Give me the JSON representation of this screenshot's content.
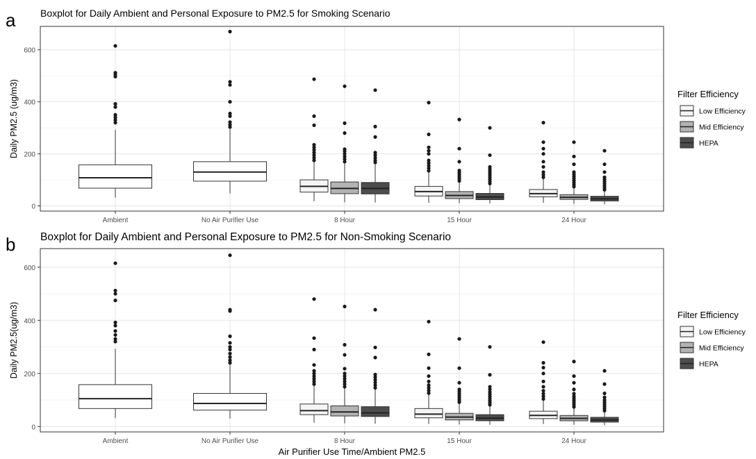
{
  "figure": {
    "legend_title": "Filter Efficiency",
    "legend_items": [
      {
        "label": "Low Efficiency",
        "color": "#f5f5f5"
      },
      {
        "label": "Mid Efficiency",
        "color": "#b3b3b3"
      },
      {
        "label": "HEPA",
        "color": "#4d4d4d"
      }
    ]
  },
  "chart_data": [
    {
      "type": "boxplot",
      "panel_label": "a",
      "title": "Boxplot for Daily Ambient and Personal Exposure to PM2.5 for Smoking Scenario",
      "xlabel": "",
      "ylabel": "Daily PM2.5 (ug/m3)",
      "ylim": [
        -20,
        690
      ],
      "yticks": [
        0,
        200,
        400,
        600
      ],
      "grid": true,
      "legend_position": "right",
      "categories": [
        "Ambient",
        "No Air Purifier Use",
        "8 Hour",
        "15 Hour",
        "24 Hour"
      ],
      "boxes": [
        {
          "category": "Ambient",
          "fill": "#ffffff",
          "whislo": 32,
          "q1": 68,
          "med": 108,
          "q3": 158,
          "whishi": 293,
          "fliers": [
            320,
            330,
            340,
            350,
            380,
            392,
            497,
            505,
            512,
            615
          ]
        },
        {
          "category": "No Air Purifier Use",
          "fill": "#ffffff",
          "whislo": 48,
          "q1": 95,
          "med": 130,
          "q3": 170,
          "whishi": 295,
          "fliers": [
            303,
            312,
            322,
            345,
            355,
            400,
            465,
            477,
            670
          ]
        },
        {
          "category": "8 Hour",
          "series": "Low Efficiency",
          "fill": "#f5f5f5",
          "whislo": 18,
          "q1": 53,
          "med": 75,
          "q3": 100,
          "whishi": 170,
          "fliers": [
            175,
            185,
            195,
            205,
            215,
            225,
            235,
            310,
            345,
            487
          ]
        },
        {
          "category": "8 Hour",
          "series": "Mid Efficiency",
          "fill": "#b3b3b3",
          "whislo": 14,
          "q1": 47,
          "med": 67,
          "q3": 92,
          "whishi": 165,
          "fliers": [
            170,
            180,
            190,
            200,
            210,
            218,
            280,
            318,
            460
          ]
        },
        {
          "category": "8 Hour",
          "series": "HEPA",
          "fill": "#4d4d4d",
          "whislo": 13,
          "q1": 46,
          "med": 67,
          "q3": 90,
          "whishi": 160,
          "fliers": [
            167,
            175,
            185,
            195,
            205,
            265,
            305,
            445
          ]
        },
        {
          "category": "15 Hour",
          "series": "Low Efficiency",
          "fill": "#f5f5f5",
          "whislo": 12,
          "q1": 38,
          "med": 55,
          "q3": 75,
          "whishi": 130,
          "fliers": [
            135,
            145,
            155,
            165,
            175,
            200,
            212,
            225,
            275,
            397
          ]
        },
        {
          "category": "15 Hour",
          "series": "Mid Efficiency",
          "fill": "#b3b3b3",
          "whislo": 10,
          "q1": 28,
          "med": 40,
          "q3": 55,
          "whishi": 92,
          "fliers": [
            96,
            104,
            112,
            120,
            128,
            136,
            170,
            220,
            332
          ]
        },
        {
          "category": "15 Hour",
          "series": "HEPA",
          "fill": "#4d4d4d",
          "whislo": 9,
          "q1": 24,
          "med": 34,
          "q3": 48,
          "whishi": 82,
          "fliers": [
            86,
            94,
            102,
            110,
            118,
            126,
            134,
            142,
            150,
            195,
            300
          ]
        },
        {
          "category": "24 Hour",
          "series": "Low Efficiency",
          "fill": "#f5f5f5",
          "whislo": 12,
          "q1": 35,
          "med": 47,
          "q3": 63,
          "whishi": 105,
          "fliers": [
            110,
            120,
            130,
            150,
            170,
            200,
            220,
            245,
            320
          ]
        },
        {
          "category": "24 Hour",
          "series": "Mid Efficiency",
          "fill": "#b3b3b3",
          "whislo": 8,
          "q1": 25,
          "med": 33,
          "q3": 43,
          "whishi": 70,
          "fliers": [
            74,
            82,
            90,
            98,
            106,
            114,
            122,
            130,
            160,
            190,
            245
          ]
        },
        {
          "category": "24 Hour",
          "series": "HEPA",
          "fill": "#4d4d4d",
          "whislo": 6,
          "q1": 19,
          "med": 27,
          "q3": 37,
          "whishi": 58,
          "fliers": [
            62,
            70,
            78,
            86,
            94,
            102,
            110,
            130,
            160,
            212
          ]
        }
      ]
    },
    {
      "type": "boxplot",
      "panel_label": "b",
      "title": "Boxplot for Daily Ambient and Personal Exposure to PM2.5 for Non-Smoking Scenario",
      "xlabel": "Air Purifier Use Time/Ambient PM2.5",
      "ylabel": "Daily PM2.5(ug/m3)",
      "ylim": [
        -20,
        670
      ],
      "yticks": [
        0,
        200,
        400,
        600
      ],
      "grid": true,
      "legend_position": "right",
      "categories": [
        "Ambient",
        "No Air Purifier Use",
        "8 Hour",
        "15 Hour",
        "24 Hour"
      ],
      "boxes": [
        {
          "category": "Ambient",
          "fill": "#ffffff",
          "whislo": 32,
          "q1": 68,
          "med": 105,
          "q3": 158,
          "whishi": 293,
          "fliers": [
            320,
            330,
            345,
            360,
            380,
            392,
            475,
            500,
            512,
            615
          ]
        },
        {
          "category": "No Air Purifier Use",
          "fill": "#ffffff",
          "whislo": 30,
          "q1": 62,
          "med": 87,
          "q3": 125,
          "whishi": 235,
          "fliers": [
            240,
            250,
            262,
            275,
            290,
            300,
            315,
            340,
            435,
            440,
            645
          ]
        },
        {
          "category": "8 Hour",
          "series": "Low Efficiency",
          "fill": "#f5f5f5",
          "whislo": 15,
          "q1": 45,
          "med": 60,
          "q3": 85,
          "whishi": 155,
          "fliers": [
            160,
            170,
            180,
            190,
            200,
            210,
            232,
            290,
            333,
            480
          ]
        },
        {
          "category": "8 Hour",
          "series": "Mid Efficiency",
          "fill": "#b3b3b3",
          "whislo": 12,
          "q1": 40,
          "med": 55,
          "q3": 78,
          "whishi": 145,
          "fliers": [
            150,
            160,
            170,
            180,
            190,
            200,
            218,
            270,
            308,
            452
          ]
        },
        {
          "category": "8 Hour",
          "series": "HEPA",
          "fill": "#4d4d4d",
          "whislo": 11,
          "q1": 38,
          "med": 52,
          "q3": 75,
          "whishi": 140,
          "fliers": [
            146,
            156,
            166,
            176,
            186,
            196,
            260,
            298,
            440
          ]
        },
        {
          "category": "15 Hour",
          "series": "Low Efficiency",
          "fill": "#f5f5f5",
          "whislo": 10,
          "q1": 33,
          "med": 47,
          "q3": 68,
          "whishi": 120,
          "fliers": [
            126,
            136,
            146,
            156,
            170,
            190,
            220,
            272,
            395
          ]
        },
        {
          "category": "15 Hour",
          "series": "Mid Efficiency",
          "fill": "#b3b3b3",
          "whislo": 8,
          "q1": 25,
          "med": 36,
          "q3": 50,
          "whishi": 88,
          "fliers": [
            92,
            100,
            108,
            116,
            124,
            132,
            140,
            165,
            220,
            330
          ]
        },
        {
          "category": "15 Hour",
          "series": "HEPA",
          "fill": "#4d4d4d",
          "whislo": 7,
          "q1": 22,
          "med": 32,
          "q3": 45,
          "whishi": 78,
          "fliers": [
            82,
            90,
            98,
            106,
            114,
            122,
            130,
            140,
            150,
            195,
            300
          ]
        },
        {
          "category": "24 Hour",
          "series": "Low Efficiency",
          "fill": "#f5f5f5",
          "whislo": 10,
          "q1": 30,
          "med": 42,
          "q3": 58,
          "whishi": 98,
          "fliers": [
            104,
            114,
            124,
            135,
            150,
            170,
            200,
            222,
            240,
            318
          ]
        },
        {
          "category": "24 Hour",
          "series": "Mid Efficiency",
          "fill": "#b3b3b3",
          "whislo": 7,
          "q1": 22,
          "med": 31,
          "q3": 42,
          "whishi": 70,
          "fliers": [
            74,
            82,
            90,
            98,
            106,
            114,
            124,
            140,
            165,
            190,
            245
          ]
        },
        {
          "category": "24 Hour",
          "series": "HEPA",
          "fill": "#4d4d4d",
          "whislo": 5,
          "q1": 17,
          "med": 25,
          "q3": 35,
          "whishi": 56,
          "fliers": [
            60,
            68,
            76,
            84,
            92,
            100,
            110,
            125,
            160,
            210
          ]
        }
      ]
    }
  ]
}
